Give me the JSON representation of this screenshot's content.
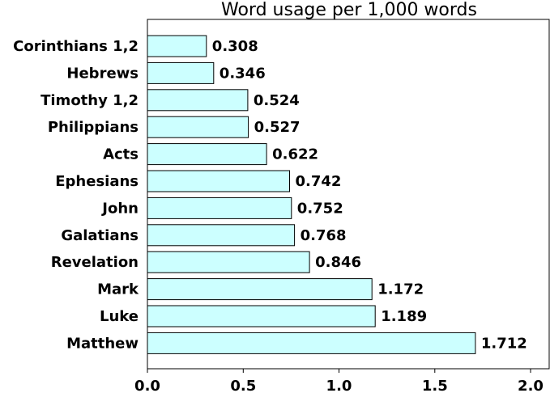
{
  "chart_data": {
    "type": "bar",
    "orientation": "horizontal",
    "title": "Word usage per 1,000 words",
    "xlabel": "",
    "ylabel": "",
    "categories": [
      "Corinthians 1,2",
      "Hebrews",
      "Timothy 1,2",
      "Philippians",
      "Acts",
      "Ephesians",
      "John",
      "Galatians",
      "Revelation",
      "Mark",
      "Luke",
      "Matthew"
    ],
    "values": [
      0.308,
      0.346,
      0.524,
      0.527,
      0.622,
      0.742,
      0.752,
      0.768,
      0.846,
      1.172,
      1.189,
      1.712
    ],
    "value_labels": [
      "0.308",
      "0.346",
      "0.524",
      "0.527",
      "0.622",
      "0.742",
      "0.752",
      "0.768",
      "0.846",
      "1.172",
      "1.189",
      "1.712"
    ],
    "xlim": [
      0,
      2.1
    ],
    "xticks": [
      0.0,
      0.5,
      1.0,
      1.5,
      2.0
    ],
    "xtick_labels": [
      "0.0",
      "0.5",
      "1.0",
      "1.5",
      "2.0"
    ],
    "grid": false,
    "legend": "none",
    "colors": {
      "bar_fill": "#ccffff",
      "bar_edge": "#000000"
    }
  }
}
